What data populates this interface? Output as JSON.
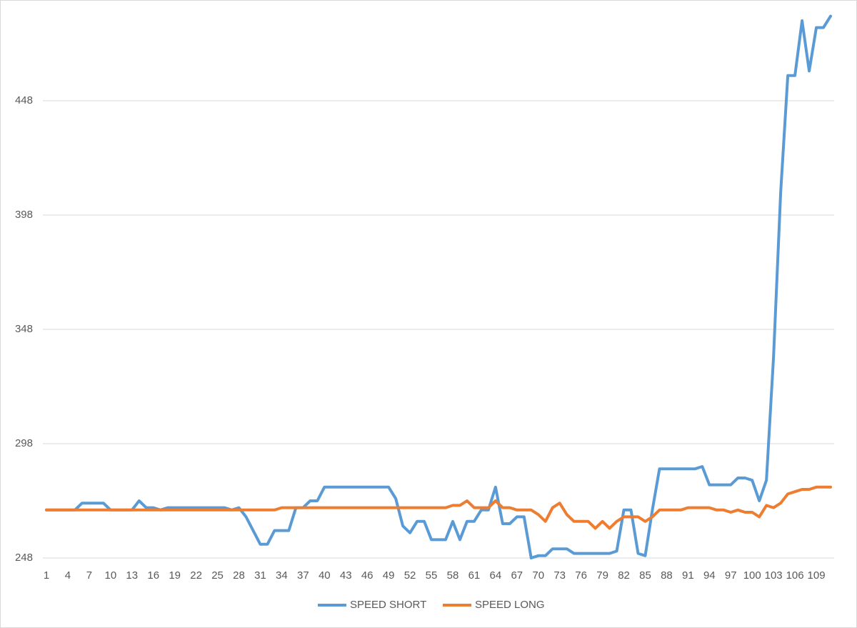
{
  "chart_data": {
    "type": "line",
    "categories": [
      1,
      null,
      null,
      4,
      null,
      null,
      7,
      null,
      null,
      10,
      null,
      null,
      13,
      null,
      null,
      16,
      null,
      null,
      19,
      null,
      null,
      22,
      null,
      null,
      25,
      null,
      null,
      28,
      null,
      null,
      31,
      null,
      null,
      34,
      null,
      null,
      37,
      null,
      null,
      40,
      null,
      null,
      43,
      null,
      null,
      46,
      null,
      null,
      49,
      null,
      null,
      52,
      null,
      null,
      55,
      null,
      null,
      58,
      null,
      null,
      61,
      null,
      null,
      64,
      null,
      null,
      67,
      null,
      null,
      70,
      null,
      null,
      73,
      null,
      null,
      76,
      null,
      null,
      79,
      null,
      null,
      82,
      null,
      null,
      85,
      null,
      null,
      88,
      null,
      null,
      91,
      null,
      null,
      94,
      null,
      null,
      97,
      null,
      null,
      100,
      null,
      null,
      103,
      null,
      null,
      106,
      null,
      null,
      109,
      null,
      null
    ],
    "series": [
      {
        "name": "SPEED SHORT",
        "color": "#5b9bd5",
        "values": [
          269,
          269,
          269,
          269,
          269,
          272,
          272,
          272,
          272,
          269,
          269,
          269,
          269,
          273,
          270,
          270,
          269,
          270,
          270,
          270,
          270,
          270,
          270,
          270,
          270,
          270,
          269,
          270,
          266,
          260,
          254,
          254,
          260,
          260,
          260,
          270,
          270,
          273,
          273,
          279,
          279,
          279,
          279,
          279,
          279,
          279,
          279,
          279,
          279,
          274,
          262,
          259,
          264,
          264,
          256,
          256,
          256,
          264,
          256,
          264,
          264,
          269,
          269,
          279,
          263,
          263,
          266,
          266,
          248,
          249,
          249,
          252,
          252,
          252,
          250,
          250,
          250,
          250,
          250,
          250,
          251,
          269,
          269,
          250,
          249,
          269,
          287,
          287,
          287,
          287,
          287,
          287,
          288,
          280,
          280,
          280,
          280,
          283,
          283,
          282,
          273,
          282,
          336,
          408,
          459,
          459,
          483,
          461,
          480,
          480,
          485
        ]
      },
      {
        "name": "SPEED LONG",
        "color": "#ed7d31",
        "values": [
          269,
          269,
          269,
          269,
          269,
          269,
          269,
          269,
          269,
          269,
          269,
          269,
          269,
          269,
          269,
          269,
          269,
          269,
          269,
          269,
          269,
          269,
          269,
          269,
          269,
          269,
          269,
          269,
          269,
          269,
          269,
          269,
          269,
          270,
          270,
          270,
          270,
          270,
          270,
          270,
          270,
          270,
          270,
          270,
          270,
          270,
          270,
          270,
          270,
          270,
          270,
          270,
          270,
          270,
          270,
          270,
          270,
          271,
          271,
          273,
          270,
          270,
          270,
          273,
          270,
          270,
          269,
          269,
          269,
          267,
          264,
          270,
          272,
          267,
          264,
          264,
          264,
          261,
          264,
          261,
          264,
          266,
          266,
          266,
          264,
          266,
          269,
          269,
          269,
          269,
          270,
          270,
          270,
          270,
          269,
          269,
          268,
          269,
          268,
          268,
          266,
          271,
          270,
          272,
          276,
          277,
          278,
          278,
          279,
          279,
          279
        ]
      }
    ],
    "ylim": [
      248,
      490
    ],
    "yticks": [
      248,
      298,
      348,
      398,
      448
    ],
    "grid": true,
    "legend": "bottom"
  }
}
